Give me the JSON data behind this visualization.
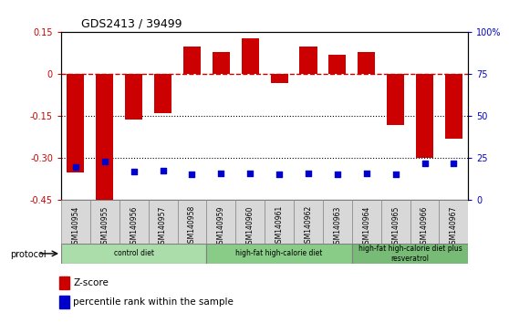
{
  "title": "GDS2413 / 39499",
  "samples": [
    "GSM140954",
    "GSM140955",
    "GSM140956",
    "GSM140957",
    "GSM140958",
    "GSM140959",
    "GSM140960",
    "GSM140961",
    "GSM140962",
    "GSM140963",
    "GSM140964",
    "GSM140965",
    "GSM140966",
    "GSM140967"
  ],
  "zscore": [
    -0.35,
    -0.5,
    -0.16,
    -0.14,
    0.1,
    0.08,
    0.13,
    -0.03,
    0.1,
    0.07,
    0.08,
    -0.18,
    -0.3,
    -0.23
  ],
  "pct_percent": [
    20,
    23,
    17,
    17.5,
    15.5,
    15.8,
    15.8,
    15.5,
    16.0,
    15.5,
    15.8,
    15.5,
    22,
    22
  ],
  "zscore_color": "#cc0000",
  "percentile_color": "#0000cc",
  "ylim_left": [
    -0.45,
    0.15
  ],
  "ylim_right": [
    0,
    100
  ],
  "yticks_left": [
    -0.45,
    -0.3,
    -0.15,
    0.0,
    0.15
  ],
  "ytick_labels_left": [
    "-0.45",
    "-0.30",
    "-0.15",
    "0",
    "0.15"
  ],
  "yticks_right": [
    0,
    25,
    50,
    75,
    100
  ],
  "ytick_labels_right": [
    "0",
    "25",
    "50",
    "75",
    "100%"
  ],
  "hline_y": 0.0,
  "dotted_lines": [
    -0.15,
    -0.3
  ],
  "groups": [
    {
      "label": "control diet",
      "start": 0,
      "end": 5,
      "color": "#aaddaa"
    },
    {
      "label": "high-fat high-calorie diet",
      "start": 5,
      "end": 10,
      "color": "#88cc88"
    },
    {
      "label": "high-fat high-calorie diet plus\nresveratrol",
      "start": 10,
      "end": 14,
      "color": "#77bb77"
    }
  ],
  "protocol_label": "protocol",
  "legend_items": [
    {
      "label": "Z-score",
      "color": "#cc0000"
    },
    {
      "label": "percentile rank within the sample",
      "color": "#0000cc"
    }
  ],
  "bar_width": 0.6,
  "label_cell_color": "#d8d8d8",
  "label_cell_edge": "#888888"
}
